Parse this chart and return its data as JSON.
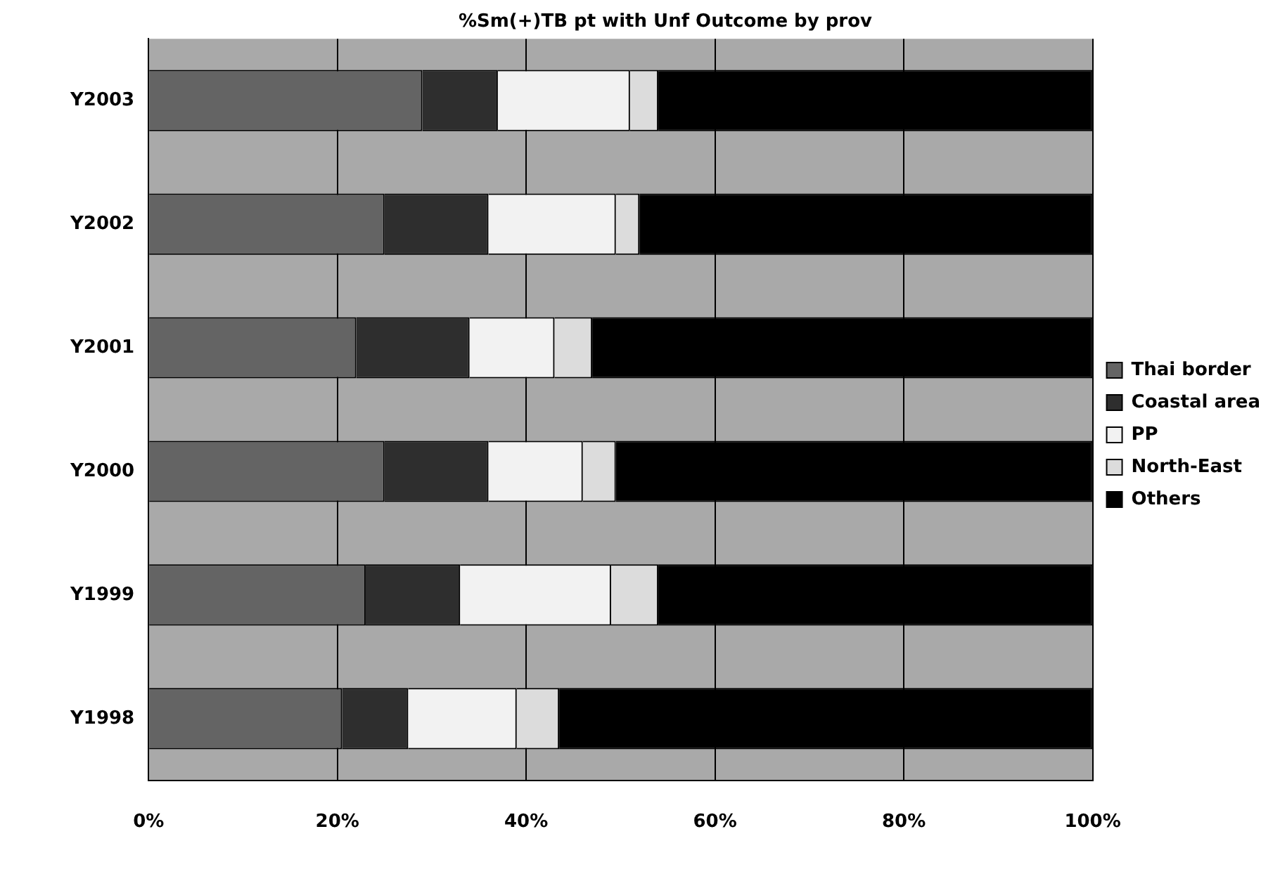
{
  "chart_data": {
    "type": "bar",
    "orientation": "horizontal",
    "stacked": true,
    "title": "%Sm(+)TB pt with Unf Outcome by prov",
    "categories": [
      "Y2003",
      "Y2002",
      "Y2001",
      "Y2000",
      "Y1999",
      "Y1998"
    ],
    "series": [
      {
        "name": "Thai border",
        "color": "#646464",
        "values": [
          29,
          25,
          22,
          25,
          23,
          20.5
        ]
      },
      {
        "name": "Coastal area",
        "color": "#2e2e2e",
        "values": [
          8,
          11,
          12,
          11,
          10,
          7
        ]
      },
      {
        "name": "PP",
        "color": "#f2f2f2",
        "values": [
          14,
          13.5,
          9,
          10,
          16,
          11.5
        ]
      },
      {
        "name": "North-East",
        "color": "#dcdcdc",
        "values": [
          3,
          2.5,
          4,
          3.5,
          5,
          4.5
        ]
      },
      {
        "name": "Others",
        "color": "#000000",
        "values": [
          46,
          48,
          53,
          50.5,
          46,
          56.5
        ]
      }
    ],
    "xlim": [
      0,
      100
    ],
    "xticks": [
      {
        "value": 0,
        "label": "0%"
      },
      {
        "value": 20,
        "label": "20%"
      },
      {
        "value": 40,
        "label": "40%"
      },
      {
        "value": 60,
        "label": "60%"
      },
      {
        "value": 80,
        "label": "80%"
      },
      {
        "value": 100,
        "label": "100%"
      }
    ],
    "grid": "x",
    "legend": "right"
  }
}
